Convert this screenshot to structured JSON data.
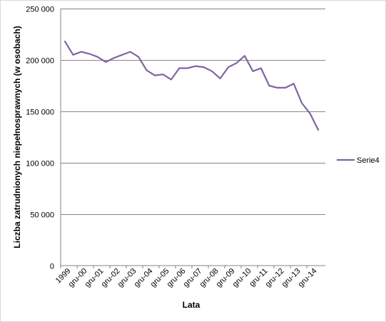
{
  "chart_data": {
    "type": "line",
    "title": "",
    "xlabel": "Lata",
    "ylabel": "Liczba zatrudnionych niepełnosprawnych (w osobach)",
    "ylim": [
      0,
      250000
    ],
    "yticks": [
      0,
      50000,
      100000,
      150000,
      200000,
      250000
    ],
    "ytick_labels": [
      "0",
      "50 000",
      "100 000",
      "150 000",
      "200 000",
      "250 000"
    ],
    "grid": "horizontal",
    "legend_position": "right",
    "x_tick_labels": [
      "1999",
      "gru-00",
      "gru-01",
      "gru-02",
      "gru-03",
      "gru-04",
      "gru-05",
      "gru-06",
      "gru-07",
      "gru-08",
      "gru-09",
      "gru-10",
      "gru-11",
      "gru-12",
      "gru-13",
      "gru-14"
    ],
    "series": [
      {
        "name": "Serie4",
        "color": "#8064a2",
        "values": [
          218000,
          205000,
          208000,
          206000,
          203000,
          198000,
          202000,
          205000,
          208000,
          203000,
          190000,
          185000,
          186000,
          181000,
          192000,
          192000,
          194000,
          193000,
          189000,
          182000,
          193000,
          197000,
          204000,
          189000,
          192000,
          175000,
          173000,
          173000,
          177000,
          158000,
          148000,
          132000
        ]
      }
    ]
  }
}
